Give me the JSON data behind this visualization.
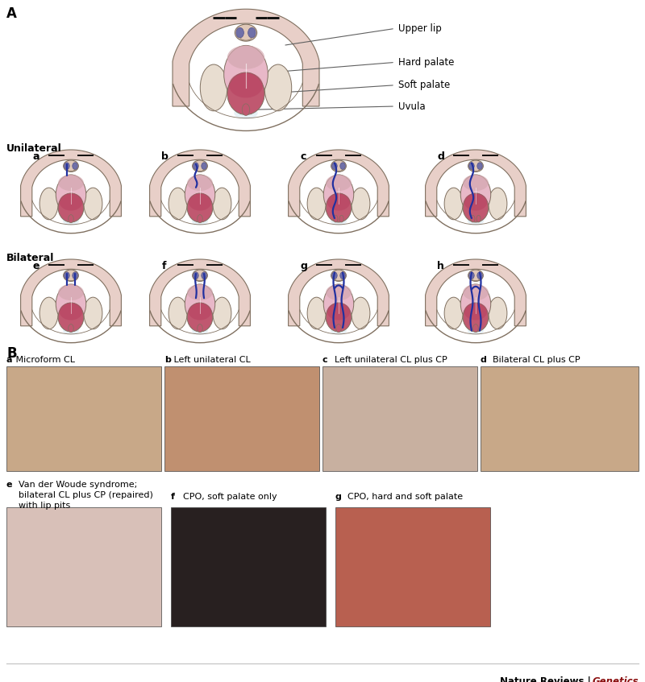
{
  "title_A": "A",
  "title_B": "B",
  "bg_color": "#ffffff",
  "labels_top": [
    "Upper lip",
    "Hard palate",
    "Soft palate",
    "Uvula"
  ],
  "unilateral_label": "Unilateral",
  "bilateral_label": "Bilateral",
  "sub_labels_unilateral": [
    "a",
    "b",
    "c",
    "d"
  ],
  "sub_labels_bilateral": [
    "e",
    "f",
    "g",
    "h"
  ],
  "photo_labels_row1_a": "a",
  "photo_labels_row1_a_text": " Microform CL",
  "photo_labels_row1_b": "b",
  "photo_labels_row1_b_text": " Left unilateral CL",
  "photo_labels_row1_c": "c",
  "photo_labels_row1_c_text": "  Left unilateral CL plus CP",
  "photo_labels_row1_d": "d",
  "photo_labels_row1_d_text": "  Bilateral CL plus CP",
  "photo_label_e": "e",
  "photo_label_e_text1": "  Van der Woude syndrome;",
  "photo_label_e_text2": "  bilateral CL plus CP (repaired)",
  "photo_label_e_text3": "  with lip pits",
  "photo_label_f": "f",
  "photo_label_f_text": "  CPO, soft palate only",
  "photo_label_g": "g",
  "photo_label_g_text": "  CPO, hard and soft palate",
  "journal_bold": "Nature Reviews | ",
  "journal_italic": "Genetics",
  "lip_color": "#e8cfc8",
  "lip_outer": "#d4b8b0",
  "tooth_bg": "#e8ddd0",
  "tooth_edge": "#c8b898",
  "palate_hard_color": "#e8b8c8",
  "palate_soft_color": "#c05870",
  "palate_soft_top": "#b84060",
  "uvula_color": "#c05870",
  "nose_skin": "#e0c8b8",
  "nostril_fill": "#7070a8",
  "nostril_edge": "#5050888",
  "blue_cleft": "#2030a0",
  "outline_dark": "#807060",
  "outline_med": "#a09080",
  "gum_fill": "#d8c8b8",
  "inner_lip_color": "#d4a8b0",
  "photo_a_color": "#c8a888",
  "photo_b_color": "#c09070",
  "photo_c_color": "#c8b0a0",
  "photo_d_color": "#c8a888",
  "photo_e_color": "#d8c0b8",
  "photo_f_color": "#282020",
  "photo_g_color": "#b86050"
}
